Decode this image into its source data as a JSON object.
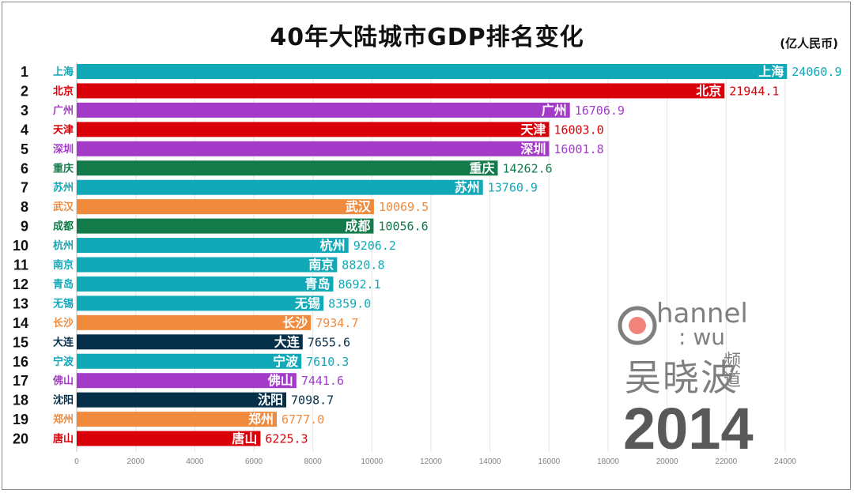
{
  "title": "40年大陆城市GDP排名变化",
  "unit": "(亿人民币)",
  "year": "2014",
  "logo": {
    "line1": "hannel",
    "line2": ": wu",
    "name": "吴晓波",
    "sub": "频道"
  },
  "colors": {
    "teal": "#11a8b8",
    "red": "#d9000a",
    "purple": "#a43ac8",
    "green": "#137a4a",
    "orange": "#f08a3c",
    "navy": "#06304a",
    "axis": "#bfbfbf"
  },
  "chart_data": {
    "type": "bar",
    "orientation": "horizontal",
    "title": "40年大陆城市GDP排名变化",
    "ylabel": "(亿人民币)",
    "xlim": [
      0,
      24000
    ],
    "xticks": [
      0,
      2000,
      4000,
      6000,
      8000,
      10000,
      12000,
      14000,
      16000,
      18000,
      20000,
      22000,
      24000
    ],
    "gridlines": true,
    "rows": [
      {
        "rank": "1",
        "city": "上海",
        "value": 24060.9,
        "label": "24060.9",
        "color": "teal"
      },
      {
        "rank": "2",
        "city": "北京",
        "value": 21944.1,
        "label": "21944.1",
        "color": "red"
      },
      {
        "rank": "3",
        "city": "广州",
        "value": 16706.9,
        "label": "16706.9",
        "color": "purple"
      },
      {
        "rank": "4",
        "city": "天津",
        "value": 16003.0,
        "label": "16003.0",
        "color": "red"
      },
      {
        "rank": "5",
        "city": "深圳",
        "value": 16001.8,
        "label": "16001.8",
        "color": "purple"
      },
      {
        "rank": "6",
        "city": "重庆",
        "value": 14262.6,
        "label": "14262.6",
        "color": "green"
      },
      {
        "rank": "7",
        "city": "苏州",
        "value": 13760.9,
        "label": "13760.9",
        "color": "teal"
      },
      {
        "rank": "8",
        "city": "武汉",
        "value": 10069.5,
        "label": "10069.5",
        "color": "orange"
      },
      {
        "rank": "9",
        "city": "成都",
        "value": 10056.6,
        "label": "10056.6",
        "color": "green"
      },
      {
        "rank": "10",
        "city": "杭州",
        "value": 9206.2,
        "label": "9206.2",
        "color": "teal"
      },
      {
        "rank": "11",
        "city": "南京",
        "value": 8820.8,
        "label": "8820.8",
        "color": "teal"
      },
      {
        "rank": "12",
        "city": "青岛",
        "value": 8692.1,
        "label": "8692.1",
        "color": "teal"
      },
      {
        "rank": "13",
        "city": "无锡",
        "value": 8359.0,
        "label": "8359.0",
        "color": "teal"
      },
      {
        "rank": "14",
        "city": "长沙",
        "value": 7934.7,
        "label": "7934.7",
        "color": "orange"
      },
      {
        "rank": "15",
        "city": "大连",
        "value": 7655.6,
        "label": "7655.6",
        "color": "navy"
      },
      {
        "rank": "16",
        "city": "宁波",
        "value": 7610.3,
        "label": "7610.3",
        "color": "teal"
      },
      {
        "rank": "17",
        "city": "佛山",
        "value": 7441.6,
        "label": "7441.6",
        "color": "purple"
      },
      {
        "rank": "18",
        "city": "沈阳",
        "value": 7098.7,
        "label": "7098.7",
        "color": "navy"
      },
      {
        "rank": "19",
        "city": "郑州",
        "value": 6777.0,
        "label": "6777.0",
        "color": "orange"
      },
      {
        "rank": "20",
        "city": "唐山",
        "value": 6225.3,
        "label": "6225.3",
        "color": "red"
      }
    ]
  }
}
